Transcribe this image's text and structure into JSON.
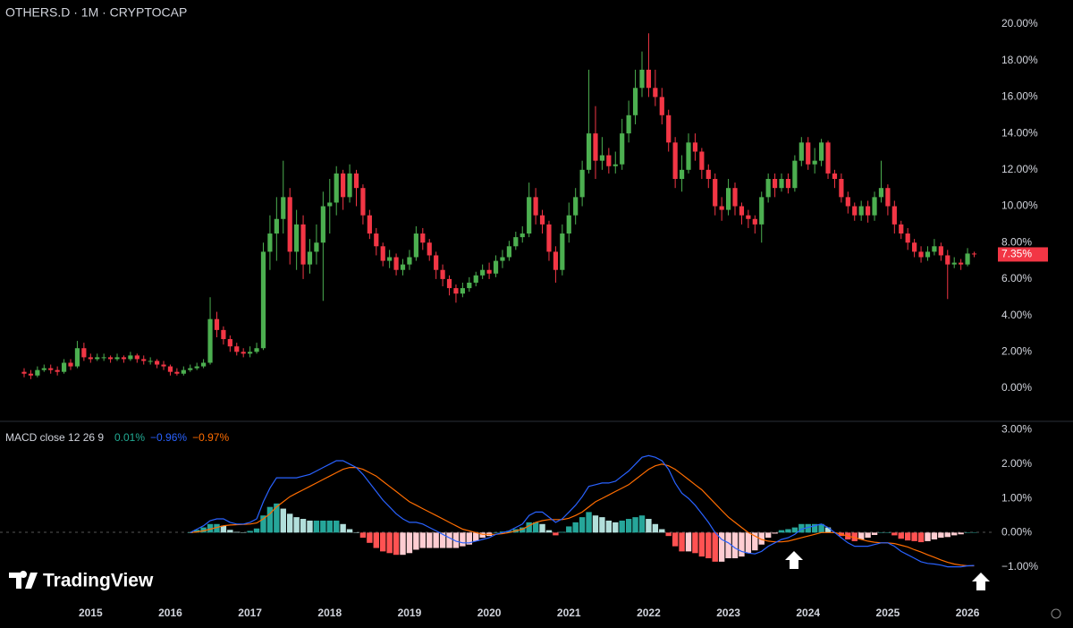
{
  "chart_data": [
    {
      "type": "candlestick",
      "title": "OTHERS.D · 1M · CRYPTOCAP",
      "watermark": "TradingView",
      "categories": [
        null,
        null,
        null,
        null,
        null,
        null,
        null,
        null,
        null,
        null,
        "2015",
        null,
        null,
        null,
        null,
        null,
        null,
        null,
        null,
        null,
        null,
        null,
        "2016",
        null,
        null,
        null,
        null,
        null,
        null,
        null,
        null,
        null,
        null,
        null,
        "2017",
        null,
        null,
        null,
        null,
        null,
        null,
        null,
        null,
        null,
        null,
        null,
        "2018",
        null,
        null,
        null,
        null,
        null,
        null,
        null,
        null,
        null,
        null,
        null,
        "2019",
        null,
        null,
        null,
        null,
        null,
        null,
        null,
        null,
        null,
        null,
        null,
        "2020",
        null,
        null,
        null,
        null,
        null,
        null,
        null,
        null,
        null,
        null,
        null,
        "2021",
        null,
        null,
        null,
        null,
        null,
        null,
        null,
        null,
        null,
        null,
        null,
        "2022",
        null,
        null,
        null,
        null,
        null,
        null,
        null,
        null,
        null,
        null,
        null,
        "2023",
        null,
        null,
        null,
        null,
        null,
        null,
        null,
        null,
        null,
        null,
        null,
        "2024",
        null,
        null,
        null,
        null,
        null,
        null,
        null,
        null,
        null,
        null,
        null,
        "2025",
        null,
        null,
        null,
        null,
        null,
        null,
        null,
        null,
        null,
        null,
        null,
        "2026",
        null
      ],
      "open": [
        0.9,
        0.8,
        0.7,
        1.0,
        1.1,
        1.0,
        0.9,
        1.4,
        1.2,
        2.2,
        1.7,
        1.6,
        1.7,
        1.7,
        1.6,
        1.7,
        1.6,
        1.8,
        1.6,
        1.5,
        1.5,
        1.3,
        1.2,
        0.9,
        0.8,
        1.0,
        1.1,
        1.2,
        1.4,
        3.8,
        3.2,
        2.7,
        2.3,
        2.0,
        1.9,
        2.0,
        2.2,
        7.5,
        8.5,
        9.3,
        10.5,
        7.5,
        9.0,
        6.8,
        7.5,
        8.0,
        10.0,
        10.2,
        11.8,
        10.5,
        11.8,
        11.0,
        9.5,
        8.5,
        7.8,
        7.0,
        7.2,
        6.5,
        6.8,
        7.2,
        8.5,
        8.0,
        7.3,
        6.5,
        6.0,
        5.5,
        5.2,
        5.5,
        5.8,
        6.2,
        6.5,
        6.3,
        7.0,
        7.2,
        7.8,
        8.3,
        8.5,
        10.5,
        9.5,
        9.0,
        7.5,
        6.5,
        8.5,
        9.5,
        10.5,
        12.0,
        14.0,
        12.5,
        12.8,
        12.2,
        12.3,
        14.0,
        15.0,
        16.5,
        17.5,
        16.5,
        16.0,
        15.0,
        13.5,
        11.5,
        12.0,
        13.5,
        13.0,
        12.0,
        11.5,
        10.0,
        9.8,
        11.0,
        10.0,
        9.5,
        9.3,
        9.0,
        10.5,
        11.5,
        11.0,
        11.5,
        11.0,
        12.5,
        13.5,
        12.3,
        12.5,
        13.5,
        11.8,
        11.5,
        10.5,
        10.0,
        9.5,
        10.0,
        9.5,
        10.5,
        11.0,
        10.0,
        9.0,
        8.5,
        8.0,
        7.5,
        7.2,
        7.5,
        7.8,
        7.3,
        6.8,
        6.9,
        6.8,
        7.4
      ],
      "high": [
        1.1,
        1.0,
        1.2,
        1.3,
        1.3,
        1.2,
        1.6,
        1.6,
        2.6,
        2.5,
        1.9,
        1.9,
        1.9,
        1.8,
        1.9,
        1.8,
        2.0,
        1.9,
        1.8,
        1.7,
        1.6,
        1.5,
        1.3,
        1.1,
        1.2,
        1.3,
        1.4,
        1.6,
        5.0,
        4.2,
        3.4,
        2.9,
        2.5,
        2.2,
        2.3,
        2.5,
        8.0,
        9.5,
        10.5,
        12.5,
        11.0,
        9.8,
        9.5,
        8.2,
        9.0,
        10.8,
        11.5,
        12.2,
        12.0,
        12.3,
        12.0,
        11.2,
        9.8,
        8.8,
        8.0,
        7.6,
        7.4,
        7.1,
        7.6,
        8.9,
        8.8,
        8.2,
        7.5,
        6.8,
        6.2,
        5.7,
        5.8,
        6.1,
        6.4,
        6.8,
        6.9,
        7.3,
        7.6,
        8.1,
        8.6,
        8.9,
        11.3,
        11.0,
        9.8,
        9.2,
        7.8,
        9.0,
        10.2,
        11.0,
        12.5,
        17.5,
        15.5,
        13.8,
        13.2,
        13.0,
        14.8,
        15.8,
        17.5,
        18.5,
        19.5,
        17.5,
        16.5,
        15.3,
        13.8,
        12.8,
        14.0,
        14.0,
        13.2,
        12.3,
        11.8,
        10.5,
        11.5,
        11.3,
        10.2,
        9.8,
        9.5,
        10.8,
        11.8,
        11.8,
        11.8,
        11.8,
        12.8,
        13.8,
        13.8,
        13.2,
        13.7,
        13.6,
        12.0,
        11.8,
        10.8,
        10.2,
        10.3,
        10.3,
        10.8,
        12.5,
        11.2,
        10.3,
        9.2,
        8.8,
        8.2,
        7.8,
        7.8,
        8.2,
        8.0,
        7.6,
        7.2,
        7.1,
        7.7,
        7.5
      ],
      "low": [
        0.6,
        0.5,
        0.6,
        0.9,
        0.8,
        0.7,
        0.8,
        1.0,
        1.1,
        1.5,
        1.4,
        1.5,
        1.5,
        1.4,
        1.5,
        1.4,
        1.5,
        1.4,
        1.3,
        1.3,
        1.1,
        1.0,
        0.7,
        0.7,
        0.7,
        0.9,
        1.0,
        1.1,
        1.3,
        2.8,
        2.4,
        2.0,
        1.8,
        1.7,
        1.7,
        1.9,
        2.1,
        6.5,
        7.0,
        8.5,
        6.8,
        6.5,
        6.0,
        6.3,
        6.8,
        4.8,
        8.5,
        9.5,
        9.8,
        10.2,
        10.0,
        9.0,
        8.2,
        7.3,
        6.7,
        6.6,
        6.2,
        6.2,
        6.5,
        7.0,
        7.6,
        7.0,
        6.0,
        5.6,
        5.1,
        4.7,
        5.0,
        5.3,
        5.6,
        6.0,
        6.0,
        6.1,
        6.6,
        7.0,
        7.6,
        8.0,
        8.3,
        9.0,
        8.5,
        7.0,
        5.8,
        6.2,
        8.0,
        9.0,
        10.0,
        11.8,
        11.5,
        12.0,
        11.8,
        11.8,
        12.0,
        13.5,
        14.5,
        16.0,
        16.0,
        15.5,
        14.5,
        13.0,
        11.0,
        10.8,
        11.8,
        12.5,
        11.5,
        11.0,
        9.5,
        9.2,
        9.5,
        9.5,
        9.0,
        8.8,
        8.5,
        8.0,
        10.2,
        10.5,
        10.8,
        10.7,
        10.8,
        12.2,
        12.0,
        11.8,
        12.2,
        11.5,
        11.0,
        10.2,
        9.6,
        9.2,
        9.2,
        9.1,
        9.2,
        10.2,
        9.5,
        8.5,
        8.2,
        7.6,
        7.2,
        6.9,
        7.0,
        7.3,
        7.0,
        4.9,
        6.6,
        6.5,
        6.7,
        7.2
      ],
      "close": [
        0.8,
        0.7,
        1.0,
        1.1,
        1.0,
        0.9,
        1.4,
        1.2,
        2.2,
        1.7,
        1.6,
        1.7,
        1.7,
        1.6,
        1.7,
        1.6,
        1.8,
        1.6,
        1.5,
        1.5,
        1.3,
        1.2,
        0.9,
        0.8,
        1.0,
        1.1,
        1.2,
        1.4,
        3.8,
        3.2,
        2.7,
        2.3,
        2.0,
        1.9,
        2.0,
        2.2,
        7.5,
        8.5,
        9.3,
        10.5,
        7.5,
        9.0,
        6.8,
        7.5,
        8.0,
        10.0,
        10.2,
        11.8,
        10.5,
        11.8,
        11.0,
        9.5,
        8.5,
        7.8,
        7.0,
        7.2,
        6.5,
        6.8,
        7.2,
        8.5,
        8.0,
        7.3,
        6.5,
        6.0,
        5.5,
        5.2,
        5.5,
        5.8,
        6.2,
        6.5,
        6.3,
        7.0,
        7.2,
        7.8,
        8.3,
        8.5,
        10.5,
        9.5,
        9.0,
        7.5,
        6.5,
        8.5,
        9.5,
        10.5,
        12.0,
        14.0,
        12.5,
        12.8,
        12.2,
        12.3,
        14.0,
        15.0,
        16.5,
        17.5,
        16.5,
        16.0,
        15.0,
        13.5,
        11.5,
        12.0,
        13.5,
        13.0,
        12.0,
        11.5,
        10.0,
        9.8,
        11.0,
        10.0,
        9.5,
        9.3,
        9.0,
        10.5,
        11.5,
        11.0,
        11.5,
        11.0,
        12.5,
        13.5,
        12.3,
        12.5,
        13.5,
        11.8,
        11.5,
        10.5,
        10.0,
        9.5,
        10.0,
        9.5,
        10.5,
        11.0,
        10.0,
        9.0,
        8.5,
        8.0,
        7.5,
        7.2,
        7.5,
        7.8,
        7.3,
        6.8,
        6.9,
        6.8,
        7.4,
        7.35
      ],
      "last_value_label": "7.35%",
      "up_color": "#4caf50",
      "down_color": "#f23645",
      "last_color": "#f23645",
      "ylim": [
        -1.77,
        21.33
      ],
      "yticks": [
        {
          "value": 0,
          "label": "0.00%"
        },
        {
          "value": 2,
          "label": "2.00%"
        },
        {
          "value": 4,
          "label": "4.00%"
        },
        {
          "value": 6,
          "label": "6.00%"
        },
        {
          "value": 8,
          "label": "8.00%"
        },
        {
          "value": 10,
          "label": "10.00%"
        },
        {
          "value": 12,
          "label": "12.00%"
        },
        {
          "value": 14,
          "label": "14.00%"
        },
        {
          "value": 16,
          "label": "16.00%"
        },
        {
          "value": 18,
          "label": "18.00%"
        },
        {
          "value": 20,
          "label": "20.00%"
        }
      ],
      "grid": false
    },
    {
      "type": "macd",
      "title": "MACD close 12 26 9",
      "legend_values": [
        {
          "label": "0.01%",
          "color": "#22ab94"
        },
        {
          "label": "−0.96%",
          "color": "#2962ff"
        },
        {
          "label": "−0.97%",
          "color": "#ff6d00"
        }
      ],
      "histogram": {
        "colors": {
          "grow_above": "#26a69a",
          "fall_above": "#b2dfdb",
          "grow_below": "#ffcdd2",
          "fall_below": "#ff5252"
        },
        "values": [
          null,
          null,
          null,
          null,
          null,
          null,
          null,
          null,
          null,
          null,
          null,
          null,
          null,
          null,
          null,
          null,
          null,
          null,
          null,
          null,
          null,
          null,
          null,
          null,
          null,
          0.0,
          0.08,
          0.15,
          0.25,
          0.25,
          0.2,
          0.08,
          0.02,
          0.01,
          0.05,
          0.12,
          0.5,
          0.75,
          0.85,
          0.7,
          0.55,
          0.45,
          0.4,
          0.35,
          0.35,
          0.35,
          0.35,
          0.35,
          0.25,
          0.1,
          0.0,
          -0.15,
          -0.3,
          -0.45,
          -0.55,
          -0.6,
          -0.65,
          -0.65,
          -0.6,
          -0.5,
          -0.45,
          -0.45,
          -0.45,
          -0.45,
          -0.45,
          -0.45,
          -0.4,
          -0.35,
          -0.25,
          -0.15,
          -0.1,
          0.0,
          0.03,
          0.05,
          0.1,
          0.15,
          0.3,
          0.3,
          0.25,
          0.07,
          -0.08,
          0.02,
          0.18,
          0.3,
          0.45,
          0.6,
          0.5,
          0.45,
          0.35,
          0.3,
          0.35,
          0.4,
          0.45,
          0.5,
          0.4,
          0.25,
          0.1,
          -0.1,
          -0.4,
          -0.55,
          -0.55,
          -0.6,
          -0.7,
          -0.75,
          -0.85,
          -0.85,
          -0.75,
          -0.75,
          -0.7,
          -0.6,
          -0.52,
          -0.35,
          -0.15,
          -0.03,
          0.07,
          0.1,
          0.15,
          0.25,
          0.25,
          0.25,
          0.25,
          0.15,
          0.0,
          -0.1,
          -0.2,
          -0.25,
          -0.2,
          -0.15,
          -0.07,
          0.0,
          0.0,
          -0.08,
          -0.18,
          -0.23,
          -0.25,
          -0.28,
          -0.25,
          -0.2,
          -0.15,
          -0.13,
          -0.08,
          -0.05,
          0.0,
          0.01
        ]
      },
      "macd": {
        "color": "#2962ff",
        "values": [
          null,
          null,
          null,
          null,
          null,
          null,
          null,
          null,
          null,
          null,
          null,
          null,
          null,
          null,
          null,
          null,
          null,
          null,
          null,
          null,
          null,
          null,
          null,
          null,
          null,
          0.0,
          0.1,
          0.2,
          0.35,
          0.4,
          0.4,
          0.3,
          0.25,
          0.25,
          0.3,
          0.4,
          0.9,
          1.3,
          1.6,
          1.6,
          1.6,
          1.6,
          1.65,
          1.7,
          1.8,
          1.9,
          2.0,
          2.1,
          2.1,
          2.0,
          1.9,
          1.7,
          1.45,
          1.2,
          0.95,
          0.75,
          0.55,
          0.4,
          0.3,
          0.3,
          0.25,
          0.15,
          0.05,
          -0.05,
          -0.15,
          -0.25,
          -0.3,
          -0.3,
          -0.25,
          -0.2,
          -0.15,
          -0.05,
          0.0,
          0.05,
          0.15,
          0.25,
          0.5,
          0.6,
          0.6,
          0.45,
          0.3,
          0.4,
          0.6,
          0.8,
          1.05,
          1.35,
          1.4,
          1.45,
          1.45,
          1.5,
          1.65,
          1.8,
          2.0,
          2.2,
          2.25,
          2.2,
          2.1,
          1.85,
          1.45,
          1.15,
          1.0,
          0.8,
          0.55,
          0.3,
          0.0,
          -0.2,
          -0.3,
          -0.45,
          -0.55,
          -0.6,
          -0.62,
          -0.55,
          -0.4,
          -0.3,
          -0.2,
          -0.15,
          -0.05,
          0.1,
          0.15,
          0.2,
          0.25,
          0.15,
          0.0,
          -0.15,
          -0.3,
          -0.4,
          -0.4,
          -0.4,
          -0.35,
          -0.3,
          -0.3,
          -0.4,
          -0.55,
          -0.65,
          -0.75,
          -0.85,
          -0.9,
          -0.92,
          -0.95,
          -1.0,
          -1.0,
          -1.0,
          -0.97,
          -0.96
        ]
      },
      "signal": {
        "color": "#ff6d00",
        "values": [
          null,
          null,
          null,
          null,
          null,
          null,
          null,
          null,
          null,
          null,
          null,
          null,
          null,
          null,
          null,
          null,
          null,
          null,
          null,
          null,
          null,
          null,
          null,
          null,
          null,
          0.0,
          0.02,
          0.05,
          0.1,
          0.15,
          0.2,
          0.22,
          0.23,
          0.24,
          0.25,
          0.28,
          0.4,
          0.55,
          0.75,
          0.9,
          1.05,
          1.15,
          1.25,
          1.35,
          1.45,
          1.55,
          1.65,
          1.75,
          1.85,
          1.9,
          1.9,
          1.85,
          1.75,
          1.65,
          1.5,
          1.35,
          1.2,
          1.05,
          0.9,
          0.8,
          0.7,
          0.6,
          0.5,
          0.4,
          0.3,
          0.2,
          0.1,
          0.05,
          0.0,
          -0.05,
          -0.05,
          -0.05,
          -0.03,
          0.0,
          0.05,
          0.1,
          0.2,
          0.3,
          0.35,
          0.38,
          0.38,
          0.38,
          0.42,
          0.5,
          0.6,
          0.75,
          0.9,
          1.0,
          1.1,
          1.2,
          1.3,
          1.4,
          1.55,
          1.7,
          1.85,
          1.95,
          2.0,
          1.95,
          1.85,
          1.7,
          1.55,
          1.4,
          1.25,
          1.05,
          0.85,
          0.65,
          0.45,
          0.3,
          0.15,
          0.0,
          -0.1,
          -0.2,
          -0.25,
          -0.27,
          -0.27,
          -0.25,
          -0.2,
          -0.15,
          -0.1,
          -0.05,
          0.0,
          0.0,
          0.0,
          -0.05,
          -0.1,
          -0.15,
          -0.2,
          -0.25,
          -0.28,
          -0.3,
          -0.3,
          -0.32,
          -0.37,
          -0.42,
          -0.5,
          -0.57,
          -0.65,
          -0.72,
          -0.8,
          -0.87,
          -0.92,
          -0.95,
          -0.97,
          -0.97
        ]
      },
      "ylim": [
        -1.69,
        3.25
      ],
      "yticks": [
        {
          "value": -1,
          "label": "−1.00%"
        },
        {
          "value": 0,
          "label": "0.00%"
        },
        {
          "value": 1,
          "label": "1.00%"
        },
        {
          "value": 2,
          "label": "2.00%"
        },
        {
          "value": 3,
          "label": "3.00%"
        }
      ]
    }
  ]
}
